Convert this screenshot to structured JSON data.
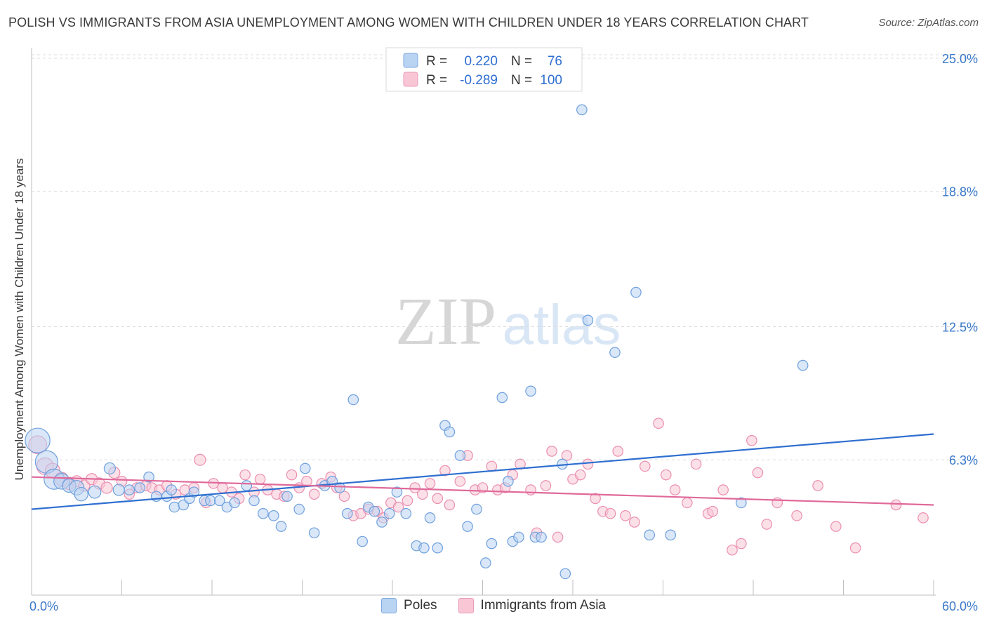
{
  "title": "POLISH VS IMMIGRANTS FROM ASIA UNEMPLOYMENT AMONG WOMEN WITH CHILDREN UNDER 18 YEARS CORRELATION CHART",
  "source": "Source: ZipAtlas.com",
  "watermark": {
    "zip": "ZIP",
    "atlas": "atlas"
  },
  "legend_top": [
    {
      "r_label": "R =",
      "r_value": "0.220",
      "n_label": "N =",
      "n_value": "76"
    },
    {
      "r_label": "R =",
      "r_value": "-0.289",
      "n_label": "N =",
      "n_value": "100"
    }
  ],
  "colors": {
    "poles": "#6fa0dd",
    "poles_fill": "#b9d3f3",
    "poles_line": "#2f6fd0",
    "asia": "#ea8fb0",
    "asia_fill": "#f9c6d6",
    "asia_line": "#e0699a",
    "tick_text": "#3a78c9"
  },
  "chart_data": {
    "type": "scatter",
    "title": "POLISH VS IMMIGRANTS FROM ASIA UNEMPLOYMENT AMONG WOMEN WITH CHILDREN UNDER 18 YEARS CORRELATION CHART",
    "xlabel": "",
    "ylabel": "Unemployment Among Women with Children Under 18 years",
    "xlim": [
      0,
      60
    ],
    "ylim": [
      0,
      27.5
    ],
    "x_tick_labels": [
      "0.0%",
      "60.0%"
    ],
    "y_ticks": [
      6.3,
      12.5,
      18.8,
      25.0
    ],
    "y_tick_labels": [
      "6.3%",
      "12.5%",
      "18.8%",
      "25.0%"
    ],
    "grid": true,
    "legend_position": "top-center",
    "series": [
      {
        "name": "Poles",
        "trend": {
          "x": [
            0,
            60
          ],
          "y": [
            4.0,
            7.5
          ]
        },
        "points": [
          [
            0.4,
            7.2,
            2.2
          ],
          [
            1.0,
            6.2,
            2.0
          ],
          [
            1.5,
            5.4,
            1.8
          ],
          [
            2.0,
            5.3,
            1.4
          ],
          [
            2.5,
            5.1,
            1.2
          ],
          [
            3.0,
            5.0,
            1.3
          ],
          [
            3.3,
            4.7,
            1.2
          ],
          [
            4.2,
            4.8,
            1.1
          ],
          [
            5.2,
            5.9,
            1.0
          ],
          [
            5.8,
            4.9,
            1.0
          ],
          [
            6.5,
            4.9,
            0.9
          ],
          [
            7.2,
            5.0,
            0.9
          ],
          [
            7.8,
            5.5,
            0.9
          ],
          [
            8.3,
            4.6,
            0.9
          ],
          [
            9.0,
            4.6,
            0.9
          ],
          [
            9.3,
            4.9,
            0.9
          ],
          [
            9.5,
            4.1,
            0.9
          ],
          [
            10.1,
            4.2,
            0.9
          ],
          [
            10.5,
            4.5,
            0.9
          ],
          [
            10.8,
            4.8,
            0.9
          ],
          [
            11.5,
            4.4,
            0.9
          ],
          [
            11.9,
            4.4,
            0.9
          ],
          [
            12.5,
            4.4,
            0.9
          ],
          [
            13.0,
            4.1,
            0.9
          ],
          [
            13.5,
            4.3,
            0.9
          ],
          [
            14.3,
            5.1,
            0.9
          ],
          [
            14.8,
            4.4,
            0.9
          ],
          [
            15.4,
            3.8,
            0.9
          ],
          [
            16.1,
            3.7,
            0.9
          ],
          [
            16.6,
            3.2,
            0.9
          ],
          [
            17.0,
            4.6,
            0.9
          ],
          [
            17.8,
            4.0,
            0.9
          ],
          [
            18.2,
            5.9,
            0.9
          ],
          [
            18.8,
            2.9,
            0.9
          ],
          [
            19.5,
            5.1,
            0.9
          ],
          [
            20.0,
            5.3,
            0.9
          ],
          [
            20.5,
            5.0,
            0.9
          ],
          [
            21.0,
            3.8,
            0.9
          ],
          [
            21.4,
            9.1,
            0.9
          ],
          [
            22.0,
            2.5,
            0.9
          ],
          [
            22.4,
            4.1,
            0.9
          ],
          [
            22.8,
            3.9,
            0.9
          ],
          [
            23.3,
            3.4,
            0.9
          ],
          [
            23.8,
            3.8,
            0.9
          ],
          [
            24.3,
            4.8,
            0.9
          ],
          [
            24.9,
            3.8,
            0.9
          ],
          [
            25.6,
            2.3,
            0.9
          ],
          [
            26.1,
            2.2,
            0.9
          ],
          [
            26.5,
            3.6,
            0.9
          ],
          [
            27.0,
            2.2,
            0.9
          ],
          [
            27.5,
            7.9,
            0.9
          ],
          [
            27.8,
            7.6,
            0.9
          ],
          [
            28.5,
            6.5,
            0.9
          ],
          [
            29.0,
            3.2,
            0.9
          ],
          [
            29.6,
            4.0,
            0.9
          ],
          [
            30.2,
            1.5,
            0.9
          ],
          [
            30.6,
            2.4,
            0.9
          ],
          [
            31.3,
            9.2,
            0.9
          ],
          [
            31.7,
            5.3,
            0.9
          ],
          [
            32.0,
            2.5,
            0.9
          ],
          [
            32.4,
            2.7,
            0.9
          ],
          [
            33.2,
            9.5,
            0.9
          ],
          [
            33.5,
            2.7,
            0.9
          ],
          [
            33.9,
            2.7,
            0.9
          ],
          [
            35.3,
            6.1,
            0.9
          ],
          [
            35.5,
            1.0,
            0.9
          ],
          [
            36.6,
            22.6,
            0.9
          ],
          [
            37.0,
            12.8,
            0.9
          ],
          [
            38.8,
            11.3,
            0.9
          ],
          [
            40.2,
            14.1,
            0.9
          ],
          [
            41.1,
            2.8,
            0.9
          ],
          [
            42.5,
            2.8,
            0.9
          ],
          [
            47.2,
            4.3,
            0.9
          ],
          [
            51.3,
            10.7,
            0.9
          ]
        ]
      },
      {
        "name": "Immigrants from Asia",
        "trend": {
          "x": [
            0,
            60
          ],
          "y": [
            5.5,
            4.2
          ]
        },
        "points": [
          [
            0.4,
            7.0,
            1.6
          ],
          [
            0.9,
            6.0,
            1.5
          ],
          [
            1.4,
            5.8,
            1.3
          ],
          [
            2.0,
            5.4,
            1.2
          ],
          [
            2.5,
            5.2,
            1.1
          ],
          [
            3.0,
            5.3,
            1.0
          ],
          [
            3.5,
            5.1,
            1.0
          ],
          [
            4.0,
            5.4,
            1.0
          ],
          [
            4.5,
            5.2,
            1.0
          ],
          [
            5.0,
            5.0,
            1.0
          ],
          [
            5.5,
            5.7,
            1.0
          ],
          [
            6.0,
            5.3,
            0.9
          ],
          [
            6.5,
            4.7,
            0.9
          ],
          [
            7.0,
            5.0,
            0.9
          ],
          [
            7.6,
            5.1,
            0.9
          ],
          [
            8.0,
            5.0,
            0.9
          ],
          [
            8.5,
            4.9,
            0.9
          ],
          [
            9.0,
            5.1,
            0.9
          ],
          [
            9.6,
            4.7,
            0.9
          ],
          [
            10.2,
            4.9,
            0.9
          ],
          [
            10.8,
            5.0,
            0.9
          ],
          [
            11.2,
            6.3,
            1.0
          ],
          [
            11.6,
            4.3,
            0.9
          ],
          [
            12.1,
            5.2,
            0.9
          ],
          [
            12.7,
            5.0,
            0.9
          ],
          [
            13.3,
            4.8,
            0.9
          ],
          [
            13.8,
            4.5,
            0.9
          ],
          [
            14.2,
            5.6,
            0.9
          ],
          [
            14.8,
            4.8,
            0.9
          ],
          [
            15.2,
            5.4,
            0.9
          ],
          [
            15.7,
            4.9,
            0.9
          ],
          [
            16.3,
            4.7,
            0.9
          ],
          [
            16.8,
            4.6,
            0.9
          ],
          [
            17.3,
            5.6,
            0.9
          ],
          [
            17.8,
            5.0,
            0.9
          ],
          [
            18.3,
            5.3,
            0.9
          ],
          [
            18.8,
            4.7,
            0.9
          ],
          [
            19.3,
            5.2,
            0.9
          ],
          [
            19.9,
            5.5,
            0.9
          ],
          [
            20.3,
            5.0,
            0.9
          ],
          [
            20.8,
            4.6,
            0.9
          ],
          [
            21.4,
            3.7,
            0.9
          ],
          [
            21.9,
            3.8,
            0.9
          ],
          [
            22.4,
            4.0,
            0.9
          ],
          [
            23.0,
            3.9,
            0.9
          ],
          [
            23.4,
            3.6,
            0.9
          ],
          [
            23.9,
            4.3,
            0.9
          ],
          [
            24.4,
            4.1,
            0.9
          ],
          [
            25.0,
            4.4,
            0.9
          ],
          [
            25.5,
            5.0,
            0.9
          ],
          [
            26.0,
            4.7,
            0.9
          ],
          [
            26.5,
            5.2,
            0.9
          ],
          [
            27.0,
            4.5,
            0.9
          ],
          [
            27.5,
            5.8,
            0.9
          ],
          [
            27.8,
            4.2,
            0.9
          ],
          [
            28.5,
            5.3,
            0.9
          ],
          [
            29.0,
            6.5,
            0.9
          ],
          [
            29.5,
            4.9,
            0.9
          ],
          [
            30.0,
            5.0,
            0.9
          ],
          [
            30.6,
            6.0,
            0.9
          ],
          [
            31.0,
            4.9,
            0.9
          ],
          [
            31.5,
            5.0,
            0.9
          ],
          [
            32.0,
            5.6,
            0.9
          ],
          [
            32.5,
            6.1,
            0.9
          ],
          [
            33.2,
            4.9,
            0.9
          ],
          [
            33.6,
            2.9,
            0.9
          ],
          [
            34.2,
            5.1,
            0.9
          ],
          [
            34.6,
            6.7,
            0.9
          ],
          [
            35.0,
            2.7,
            0.9
          ],
          [
            35.6,
            6.5,
            0.9
          ],
          [
            36.0,
            5.4,
            0.9
          ],
          [
            36.5,
            5.6,
            0.9
          ],
          [
            37.0,
            6.1,
            0.9
          ],
          [
            37.5,
            4.5,
            0.9
          ],
          [
            38.0,
            3.9,
            0.9
          ],
          [
            38.5,
            3.8,
            0.9
          ],
          [
            39.0,
            6.7,
            0.9
          ],
          [
            39.5,
            3.7,
            0.9
          ],
          [
            40.1,
            3.4,
            0.9
          ],
          [
            40.8,
            6.0,
            0.9
          ],
          [
            41.7,
            8.0,
            0.9
          ],
          [
            42.2,
            5.6,
            0.9
          ],
          [
            42.8,
            4.9,
            0.9
          ],
          [
            43.6,
            4.3,
            0.9
          ],
          [
            44.2,
            6.1,
            0.9
          ],
          [
            45.0,
            3.8,
            0.9
          ],
          [
            45.3,
            3.9,
            0.9
          ],
          [
            46.0,
            4.9,
            0.9
          ],
          [
            46.6,
            2.1,
            0.9
          ],
          [
            47.2,
            2.4,
            0.9
          ],
          [
            47.9,
            7.2,
            0.9
          ],
          [
            48.3,
            5.7,
            0.9
          ],
          [
            48.9,
            3.3,
            0.9
          ],
          [
            49.6,
            4.3,
            0.9
          ],
          [
            50.9,
            3.7,
            0.9
          ],
          [
            52.3,
            5.1,
            0.9
          ],
          [
            53.5,
            3.2,
            0.9
          ],
          [
            54.8,
            2.2,
            0.9
          ],
          [
            57.5,
            4.2,
            0.9
          ],
          [
            59.3,
            3.6,
            0.9
          ]
        ]
      }
    ]
  }
}
